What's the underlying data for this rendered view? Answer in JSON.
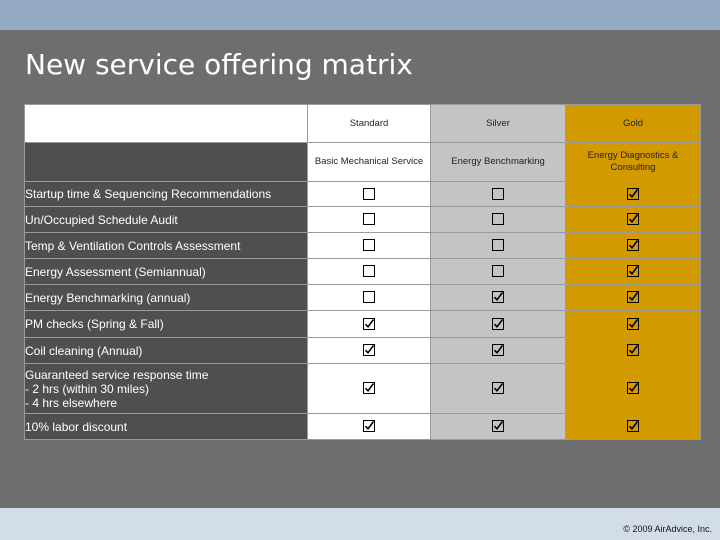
{
  "title": "New service offering matrix",
  "footer": "© 2009 AirAdvice, Inc.",
  "tiers": [
    {
      "name": "Standard",
      "desc": "Basic Mechanical Service"
    },
    {
      "name": "Silver",
      "desc": "Energy Benchmarking"
    },
    {
      "name": "Gold",
      "desc": "Energy Diagnostics & Consulting"
    }
  ],
  "rows": [
    {
      "label": "Startup time & Sequencing Recommendations",
      "checks": [
        false,
        false,
        true
      ]
    },
    {
      "label": "Un/Occupied Schedule Audit",
      "checks": [
        false,
        false,
        true
      ]
    },
    {
      "label": "Temp & Ventilation Controls Assessment",
      "checks": [
        false,
        false,
        true
      ]
    },
    {
      "label": "Energy Assessment (Semiannual)",
      "checks": [
        false,
        false,
        true
      ]
    },
    {
      "label": "Energy Benchmarking (annual)",
      "checks": [
        false,
        true,
        true
      ]
    },
    {
      "label": "PM checks (Spring & Fall)",
      "checks": [
        true,
        true,
        true
      ]
    },
    {
      "label": "Coil cleaning (Annual)",
      "checks": [
        true,
        true,
        true
      ]
    },
    {
      "label": "Guaranteed service response time",
      "sublines": [
        "- 2 hrs (within 30 miles)",
        "- 4 hrs elsewhere"
      ],
      "checks": [
        true,
        true,
        true
      ]
    },
    {
      "label": "10% labor discount",
      "checks": [
        true,
        true,
        true
      ]
    }
  ],
  "colors": {
    "gold": "#d39a00",
    "silver": "#c4c4c4",
    "standard": "#ffffff",
    "label_bg": "#4f4f4f"
  }
}
